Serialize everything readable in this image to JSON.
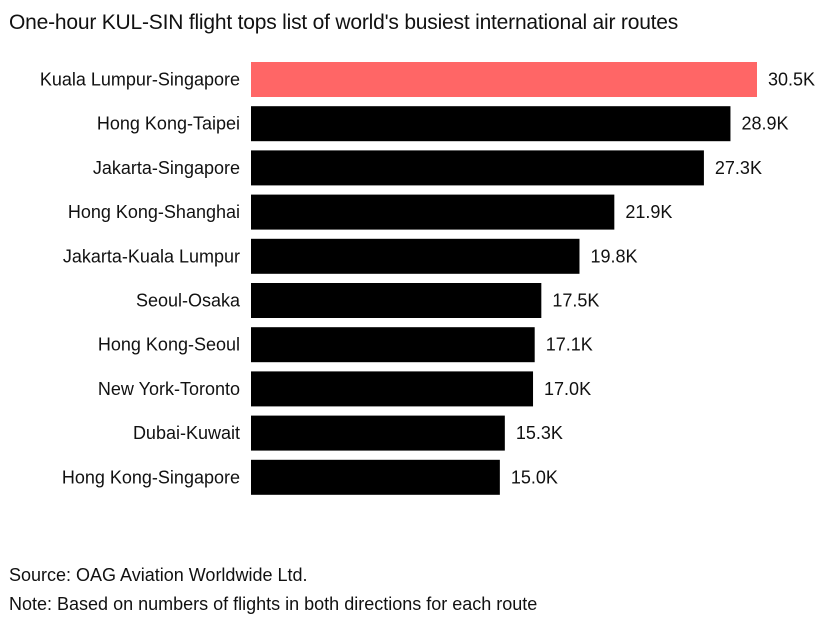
{
  "chart_data": {
    "type": "bar",
    "orientation": "horizontal",
    "title": "One-hour KUL-SIN flight tops list of world's busiest international air routes",
    "categories": [
      "Kuala Lumpur-Singapore",
      "Hong Kong-Taipei",
      "Jakarta-Singapore",
      "Hong Kong-Shanghai",
      "Jakarta-Kuala Lumpur",
      "Seoul-Osaka",
      "Hong Kong-Seoul",
      "New York-Toronto",
      "Dubai-Kuwait",
      "Hong Kong-Singapore"
    ],
    "values": [
      30.5,
      28.9,
      27.3,
      21.9,
      19.8,
      17.5,
      17.1,
      17.0,
      15.3,
      15.0
    ],
    "value_labels": [
      "30.5K",
      "28.9K",
      "27.3K",
      "21.9K",
      "19.8K",
      "17.5K",
      "17.1K",
      "17.0K",
      "15.3K",
      "15.0K"
    ],
    "unit": "thousands",
    "xlim": [
      0,
      30.5
    ],
    "grid": false,
    "legend": "none",
    "highlight_index": 0,
    "colors": {
      "highlight": "#ff6666",
      "bar": "#000000"
    }
  },
  "footer": {
    "source": "Source: OAG Aviation Worldwide Ltd.",
    "note": "Note: Based on numbers of flights in both directions for each route"
  }
}
